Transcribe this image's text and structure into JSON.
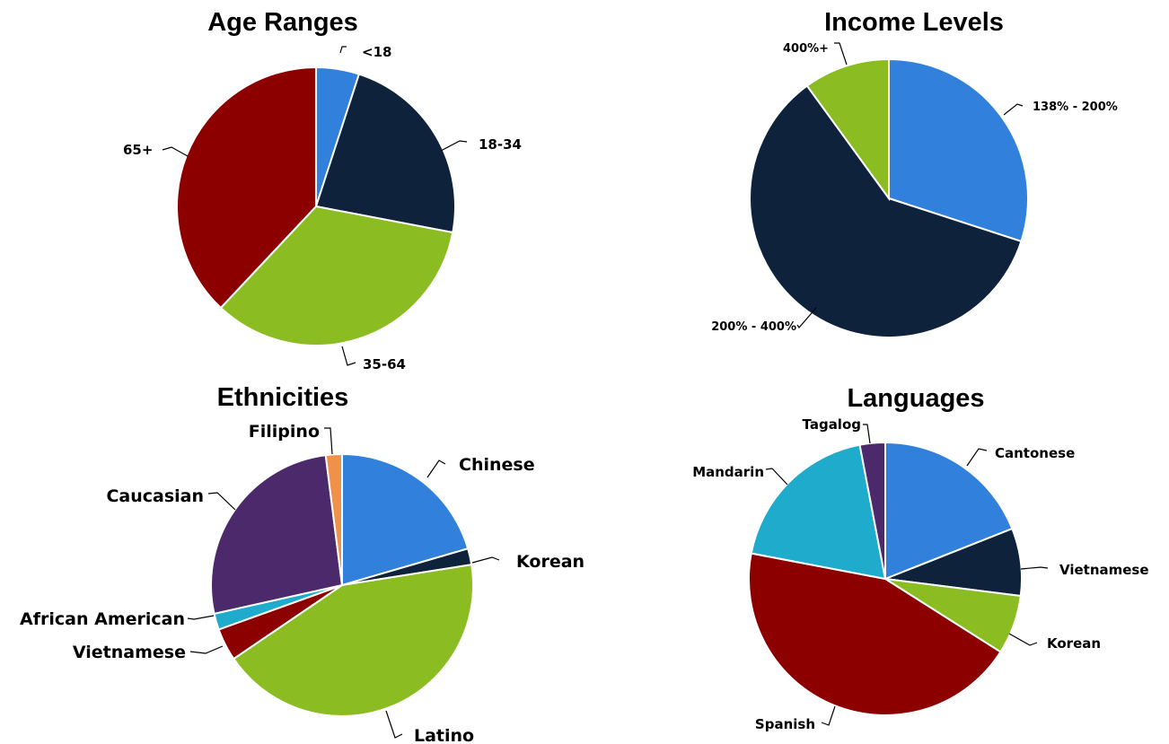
{
  "chart_data": [
    {
      "type": "pie",
      "title": "Age Ranges",
      "slices": [
        {
          "label": "<18",
          "value": 5,
          "color": "#3080dc"
        },
        {
          "label": "18-34",
          "value": 23,
          "color": "#0e223b"
        },
        {
          "label": "35-64",
          "value": 34,
          "color": "#8bbc22"
        },
        {
          "label": "65+",
          "value": 38,
          "color": "#8c0000"
        }
      ]
    },
    {
      "type": "pie",
      "title": "Income Levels",
      "slices": [
        {
          "label": "138% - 200%",
          "value": 30,
          "color": "#3080dc"
        },
        {
          "label": "200% - 400%",
          "value": 60,
          "color": "#0e223b"
        },
        {
          "label": "400%+",
          "value": 10,
          "color": "#8bbc22"
        }
      ]
    },
    {
      "type": "pie",
      "title": "Ethnicities",
      "slices": [
        {
          "label": "Chinese",
          "value": 20.5,
          "color": "#3080dc"
        },
        {
          "label": "Korean",
          "value": 2,
          "color": "#0e223b"
        },
        {
          "label": "Latino",
          "value": 43,
          "color": "#8bbc22"
        },
        {
          "label": "Vietnamese",
          "value": 4,
          "color": "#8c0000"
        },
        {
          "label": "African American",
          "value": 2,
          "color": "#1fabcc"
        },
        {
          "label": "Caucasian",
          "value": 26.5,
          "color": "#4b296b"
        },
        {
          "label": "Filipino",
          "value": 2,
          "color": "#f0914a"
        }
      ]
    },
    {
      "type": "pie",
      "title": "Languages",
      "slices": [
        {
          "label": "Cantonese",
          "value": 19,
          "color": "#3080dc"
        },
        {
          "label": "Vietnamese",
          "value": 8,
          "color": "#0e223b"
        },
        {
          "label": "Korean",
          "value": 7,
          "color": "#8bbc22"
        },
        {
          "label": "Spanish",
          "value": 44,
          "color": "#8c0000"
        },
        {
          "label": "Mandarin",
          "value": 19,
          "color": "#1fabcc"
        },
        {
          "label": "Tagalog",
          "value": 3,
          "color": "#4b296b"
        }
      ]
    }
  ]
}
